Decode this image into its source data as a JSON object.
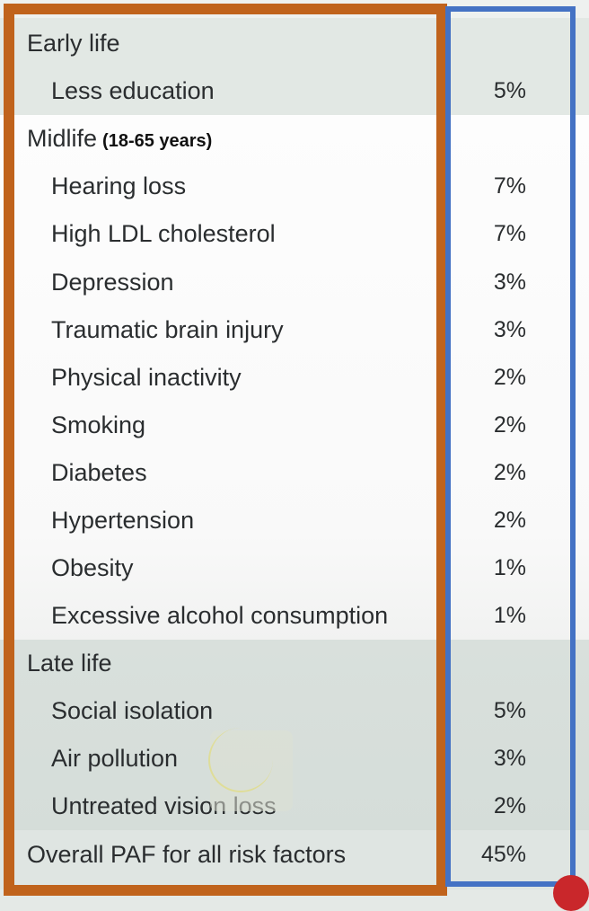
{
  "rows": [
    {
      "kind": "header",
      "label": "Early life",
      "value": ""
    },
    {
      "kind": "item",
      "label": "Less education",
      "value": "5%"
    },
    {
      "kind": "header",
      "label": "Midlife",
      "sub": "(18-65 years)",
      "value": ""
    },
    {
      "kind": "item",
      "label": "Hearing loss",
      "value": "7%"
    },
    {
      "kind": "item",
      "label": "High LDL cholesterol",
      "value": "7%"
    },
    {
      "kind": "item",
      "label": "Depression",
      "value": "3%"
    },
    {
      "kind": "item",
      "label": "Traumatic brain injury",
      "value": "3%"
    },
    {
      "kind": "item",
      "label": "Physical inactivity",
      "value": "2%"
    },
    {
      "kind": "item",
      "label": "Smoking",
      "value": "2%"
    },
    {
      "kind": "item",
      "label": "Diabetes",
      "value": "2%"
    },
    {
      "kind": "item",
      "label": "Hypertension",
      "value": "2%"
    },
    {
      "kind": "item",
      "label": "Obesity",
      "value": "1%"
    },
    {
      "kind": "item",
      "label": "Excessive alcohol consumption",
      "value": "1%"
    },
    {
      "kind": "header",
      "label": "Late life",
      "value": ""
    },
    {
      "kind": "item",
      "label": "Social isolation",
      "value": "5%"
    },
    {
      "kind": "item",
      "label": "Air pollution",
      "value": "3%"
    },
    {
      "kind": "item",
      "label": "Untreated vision loss",
      "value": "2%"
    },
    {
      "kind": "header",
      "label": "Overall PAF for all risk factors",
      "value": "45%"
    }
  ],
  "colors": {
    "left_border": "#c0631c",
    "right_border": "#4472c4",
    "early_band": "#e2e8e4",
    "mid_band": "#fdfdfd",
    "late_band": "#d7dfdb",
    "text": "#2a2d2f"
  }
}
